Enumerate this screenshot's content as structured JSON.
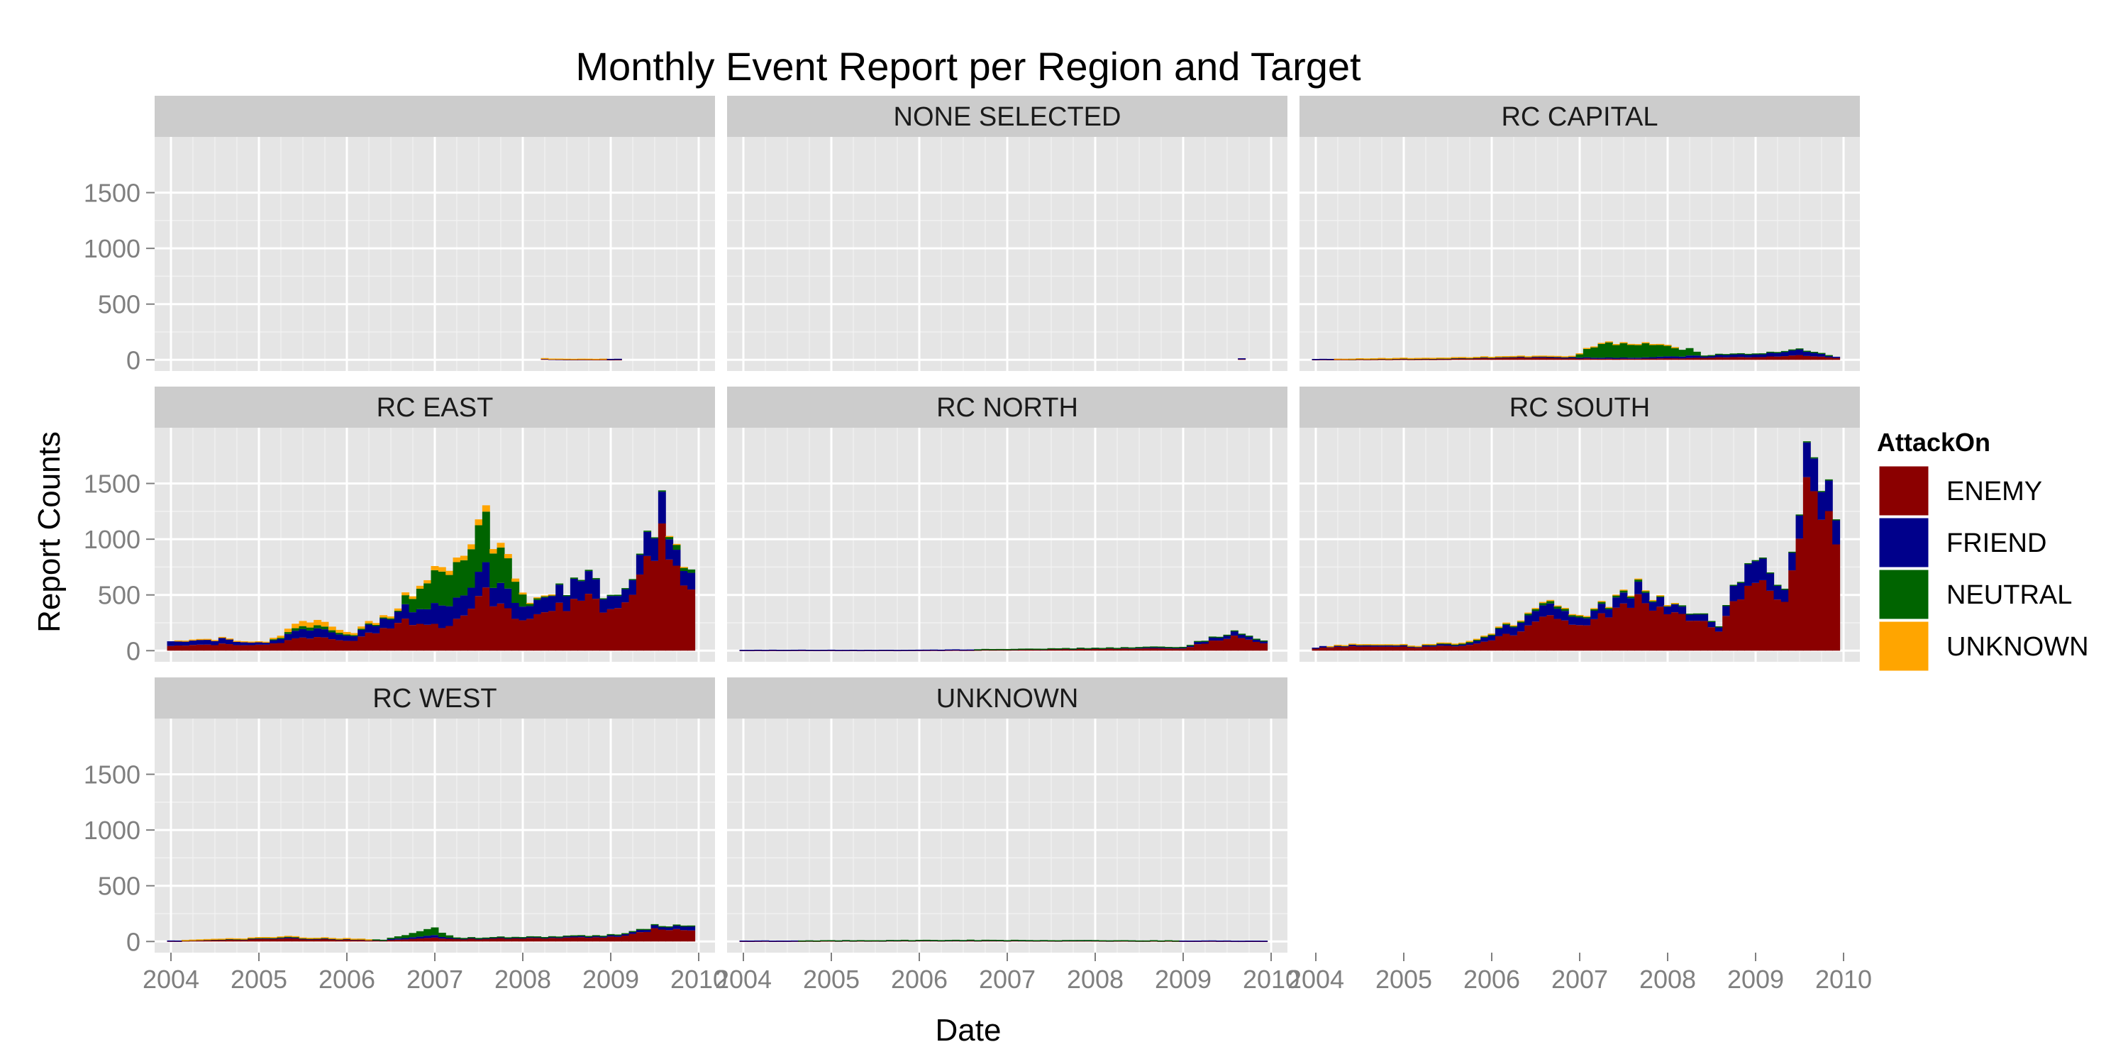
{
  "chart_data": {
    "type": "bar",
    "stacked": true,
    "title": "Monthly Event Report per Region and Target",
    "xlabel": "Date",
    "ylabel": "Report Counts",
    "x_ticks": [
      "2004",
      "2005",
      "2006",
      "2007",
      "2008",
      "2009",
      "2010"
    ],
    "y_ticks": [
      0,
      500,
      1000,
      1500
    ],
    "x_range": [
      "2004-01",
      "2009-12"
    ],
    "ylim": [
      -100,
      2000
    ],
    "grid": true,
    "legend": {
      "title": "AttackOn",
      "position": "right",
      "entries": [
        {
          "name": "ENEMY",
          "color": "#8b0000"
        },
        {
          "name": "FRIEND",
          "color": "#00008b"
        },
        {
          "name": "NEUTRAL",
          "color": "#006400"
        },
        {
          "name": "UNKNOWN",
          "color": "#ffa500"
        }
      ]
    },
    "facets": [
      {
        "label": "",
        "keys": [
          {
            "t": "2008-04",
            "e": 10,
            "f": 2,
            "n": 0,
            "u": 3
          },
          {
            "t": "2008-07",
            "e": 5,
            "f": 2,
            "n": 0,
            "u": 3
          },
          {
            "t": "2009-02",
            "e": 5,
            "f": 5,
            "n": 0,
            "u": 0
          }
        ]
      },
      {
        "label": "NONE SELECTED",
        "keys": [
          {
            "t": "2009-09",
            "e": 10,
            "f": 3,
            "n": 0,
            "u": 0
          }
        ]
      },
      {
        "label": "RC CAPITAL",
        "keys": [
          {
            "t": "2004-01",
            "e": 5,
            "f": 3,
            "n": 0,
            "u": 0
          },
          {
            "t": "2005-06",
            "e": 8,
            "f": 8,
            "n": 2,
            "u": 3
          },
          {
            "t": "2006-06",
            "e": 20,
            "f": 10,
            "n": 5,
            "u": 2
          },
          {
            "t": "2006-12",
            "e": 15,
            "f": 8,
            "n": 10,
            "u": 2
          },
          {
            "t": "2007-04",
            "e": 10,
            "f": 10,
            "n": 140,
            "u": 3
          },
          {
            "t": "2007-10",
            "e": 10,
            "f": 10,
            "n": 120,
            "u": 2
          },
          {
            "t": "2008-04",
            "e": 15,
            "f": 20,
            "n": 60,
            "u": 0
          },
          {
            "t": "2008-06",
            "e": 20,
            "f": 20,
            "n": 5,
            "u": 0
          },
          {
            "t": "2009-01",
            "e": 25,
            "f": 30,
            "n": 5,
            "u": 0
          },
          {
            "t": "2009-08",
            "e": 40,
            "f": 50,
            "n": 5,
            "u": 0
          },
          {
            "t": "2009-12",
            "e": 15,
            "f": 10,
            "n": 0,
            "u": 0
          }
        ]
      },
      {
        "label": "RC EAST",
        "keys": [
          {
            "t": "2004-01",
            "e": 40,
            "f": 40,
            "n": 0,
            "u": 0
          },
          {
            "t": "2004-08",
            "e": 60,
            "f": 50,
            "n": 0,
            "u": 5
          },
          {
            "t": "2005-02",
            "e": 50,
            "f": 20,
            "n": 0,
            "u": 5
          },
          {
            "t": "2005-08",
            "e": 120,
            "f": 80,
            "n": 30,
            "u": 50
          },
          {
            "t": "2006-02",
            "e": 100,
            "f": 50,
            "n": 10,
            "u": 20
          },
          {
            "t": "2006-08",
            "e": 250,
            "f": 100,
            "n": 10,
            "u": 20
          },
          {
            "t": "2006-12",
            "e": 250,
            "f": 150,
            "n": 250,
            "u": 30
          },
          {
            "t": "2007-02",
            "e": 200,
            "f": 200,
            "n": 300,
            "u": 40
          },
          {
            "t": "2007-08",
            "e": 500,
            "f": 200,
            "n": 400,
            "u": 50
          },
          {
            "t": "2007-12",
            "e": 300,
            "f": 150,
            "n": 200,
            "u": 30
          },
          {
            "t": "2008-02",
            "e": 250,
            "f": 100,
            "n": 20,
            "u": 5
          },
          {
            "t": "2008-06",
            "e": 400,
            "f": 150,
            "n": 10,
            "u": 0
          },
          {
            "t": "2008-10",
            "e": 450,
            "f": 180,
            "n": 10,
            "u": 0
          },
          {
            "t": "2009-02",
            "e": 350,
            "f": 100,
            "n": 10,
            "u": 0
          },
          {
            "t": "2009-08",
            "e": 1000,
            "f": 250,
            "n": 10,
            "u": 0
          },
          {
            "t": "2009-10",
            "e": 800,
            "f": 150,
            "n": 50,
            "u": 5
          },
          {
            "t": "2009-12",
            "e": 550,
            "f": 150,
            "n": 30,
            "u": 0
          }
        ]
      },
      {
        "label": "RC NORTH",
        "keys": [
          {
            "t": "2004-01",
            "e": 5,
            "f": 3,
            "n": 0,
            "u": 0
          },
          {
            "t": "2006-01",
            "e": 5,
            "f": 3,
            "n": 0,
            "u": 0
          },
          {
            "t": "2008-01",
            "e": 15,
            "f": 8,
            "n": 2,
            "u": 0
          },
          {
            "t": "2009-01",
            "e": 20,
            "f": 15,
            "n": 2,
            "u": 0
          },
          {
            "t": "2009-08",
            "e": 130,
            "f": 40,
            "n": 5,
            "u": 0
          },
          {
            "t": "2009-12",
            "e": 60,
            "f": 20,
            "n": 3,
            "u": 0
          }
        ]
      },
      {
        "label": "RC SOUTH",
        "keys": [
          {
            "t": "2004-01",
            "e": 20,
            "f": 10,
            "n": 0,
            "u": 0
          },
          {
            "t": "2004-06",
            "e": 40,
            "f": 20,
            "n": 2,
            "u": 2
          },
          {
            "t": "2005-03",
            "e": 30,
            "f": 15,
            "n": 2,
            "u": 2
          },
          {
            "t": "2005-10",
            "e": 50,
            "f": 20,
            "n": 5,
            "u": 10
          },
          {
            "t": "2006-04",
            "e": 150,
            "f": 80,
            "n": 10,
            "u": 10
          },
          {
            "t": "2006-08",
            "e": 300,
            "f": 100,
            "n": 20,
            "u": 10
          },
          {
            "t": "2007-01",
            "e": 200,
            "f": 60,
            "n": 15,
            "u": 5
          },
          {
            "t": "2007-09",
            "e": 450,
            "f": 100,
            "n": 20,
            "u": 5
          },
          {
            "t": "2008-03",
            "e": 300,
            "f": 60,
            "n": 10,
            "u": 0
          },
          {
            "t": "2008-08",
            "e": 200,
            "f": 50,
            "n": 5,
            "u": 0
          },
          {
            "t": "2008-12",
            "e": 600,
            "f": 200,
            "n": 10,
            "u": 0
          },
          {
            "t": "2009-05",
            "e": 500,
            "f": 130,
            "n": 5,
            "u": 0
          },
          {
            "t": "2009-08",
            "e": 1500,
            "f": 300,
            "n": 10,
            "u": 0
          },
          {
            "t": "2009-12",
            "e": 1100,
            "f": 250,
            "n": 10,
            "u": 0
          }
        ]
      },
      {
        "label": "RC WEST",
        "keys": [
          {
            "t": "2004-01",
            "e": 5,
            "f": 3,
            "n": 0,
            "u": 0
          },
          {
            "t": "2005-05",
            "e": 25,
            "f": 10,
            "n": 5,
            "u": 5
          },
          {
            "t": "2006-06",
            "e": 10,
            "f": 5,
            "n": 2,
            "u": 0
          },
          {
            "t": "2007-01",
            "e": 30,
            "f": 20,
            "n": 60,
            "u": 0
          },
          {
            "t": "2007-04",
            "e": 25,
            "f": 5,
            "n": 5,
            "u": 0
          },
          {
            "t": "2008-06",
            "e": 30,
            "f": 10,
            "n": 5,
            "u": 0
          },
          {
            "t": "2009-02",
            "e": 40,
            "f": 15,
            "n": 5,
            "u": 0
          },
          {
            "t": "2009-08",
            "e": 120,
            "f": 30,
            "n": 5,
            "u": 0
          },
          {
            "t": "2009-12",
            "e": 100,
            "f": 40,
            "n": 5,
            "u": 0
          }
        ]
      },
      {
        "label": "UNKNOWN",
        "keys": [
          {
            "t": "2004-01",
            "e": 5,
            "f": 3,
            "n": 0,
            "u": 0
          },
          {
            "t": "2006-06",
            "e": 10,
            "f": 3,
            "n": 2,
            "u": 0
          },
          {
            "t": "2009-12",
            "e": 5,
            "f": 3,
            "n": 0,
            "u": 0
          }
        ]
      }
    ]
  }
}
